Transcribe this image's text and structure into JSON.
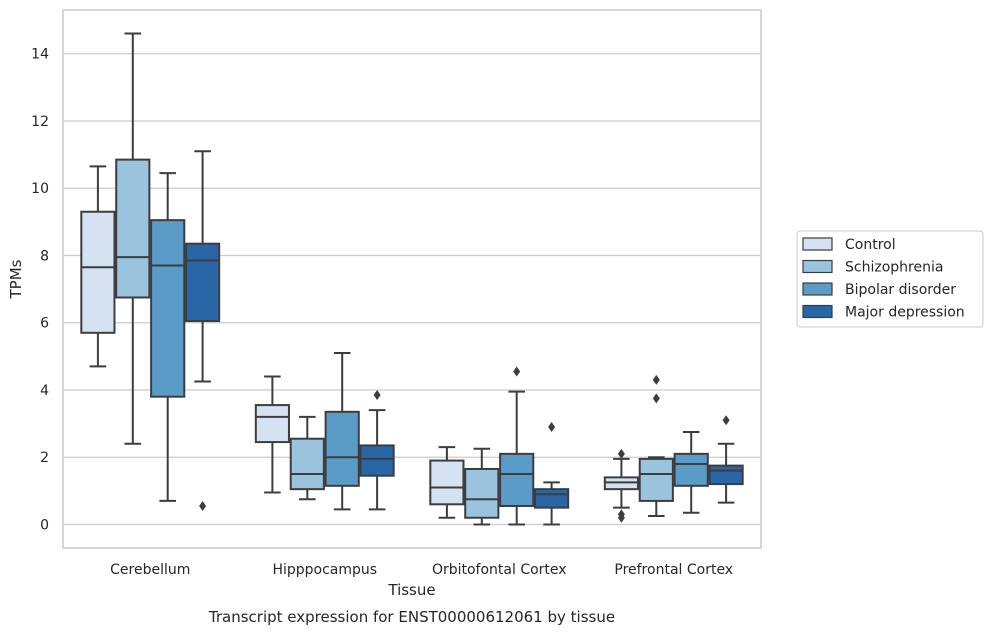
{
  "chart_data": {
    "type": "boxplot",
    "caption": "Transcript expression for ENST00000612061 by tissue",
    "xlabel": "Tissue",
    "ylabel": "TPMs",
    "ylim": [
      -0.7,
      15.3
    ],
    "yticks": [
      0,
      2,
      4,
      6,
      8,
      10,
      12,
      14
    ],
    "grid": "horizontal",
    "legend_position": "right",
    "categories": [
      "Cerebellum",
      "Hipppocampus",
      "Orbitofontal Cortex",
      "Prefrontal Cortex"
    ],
    "series": [
      {
        "name": "Control",
        "color": "#d4e2f1",
        "boxes": [
          {
            "whislo": 4.7,
            "q1": 5.7,
            "med": 7.65,
            "q3": 9.3,
            "whishi": 10.65,
            "fliers": []
          },
          {
            "whislo": 0.95,
            "q1": 2.45,
            "med": 3.2,
            "q3": 3.55,
            "whishi": 4.4,
            "fliers": []
          },
          {
            "whislo": 0.2,
            "q1": 0.6,
            "med": 1.1,
            "q3": 1.9,
            "whishi": 2.3,
            "fliers": []
          },
          {
            "whislo": 0.5,
            "q1": 1.05,
            "med": 1.25,
            "q3": 1.4,
            "whishi": 1.95,
            "fliers": [
              2.1,
              0.3,
              0.2
            ]
          }
        ]
      },
      {
        "name": "Schizophrenia",
        "color": "#9ac3de",
        "boxes": [
          {
            "whislo": 2.4,
            "q1": 6.75,
            "med": 7.95,
            "q3": 10.85,
            "whishi": 14.6,
            "fliers": []
          },
          {
            "whislo": 0.75,
            "q1": 1.05,
            "med": 1.5,
            "q3": 2.55,
            "whishi": 3.2,
            "fliers": []
          },
          {
            "whislo": 0.0,
            "q1": 0.2,
            "med": 0.75,
            "q3": 1.65,
            "whishi": 2.25,
            "fliers": []
          },
          {
            "whislo": 0.25,
            "q1": 0.7,
            "med": 1.5,
            "q3": 1.95,
            "whishi": 2.0,
            "fliers": [
              4.3,
              3.75
            ]
          }
        ]
      },
      {
        "name": "Bipolar disorder",
        "color": "#5a9bc8",
        "boxes": [
          {
            "whislo": 0.7,
            "q1": 3.8,
            "med": 7.7,
            "q3": 9.05,
            "whishi": 10.45,
            "fliers": []
          },
          {
            "whislo": 0.45,
            "q1": 1.15,
            "med": 2.0,
            "q3": 3.35,
            "whishi": 5.1,
            "fliers": []
          },
          {
            "whislo": 0.0,
            "q1": 0.55,
            "med": 1.5,
            "q3": 2.1,
            "whishi": 3.95,
            "fliers": [
              4.55
            ]
          },
          {
            "whislo": 0.35,
            "q1": 1.15,
            "med": 1.8,
            "q3": 2.1,
            "whishi": 2.75,
            "fliers": []
          }
        ]
      },
      {
        "name": "Major depression",
        "color": "#2866a7",
        "boxes": [
          {
            "whislo": 4.25,
            "q1": 6.05,
            "med": 7.85,
            "q3": 8.35,
            "whishi": 11.1,
            "fliers": [
              0.55
            ]
          },
          {
            "whislo": 0.45,
            "q1": 1.45,
            "med": 1.95,
            "q3": 2.35,
            "whishi": 3.4,
            "fliers": [
              3.85
            ]
          },
          {
            "whislo": 0.0,
            "q1": 0.5,
            "med": 0.9,
            "q3": 1.05,
            "whishi": 1.25,
            "fliers": [
              2.9
            ]
          },
          {
            "whislo": 0.65,
            "q1": 1.2,
            "med": 1.6,
            "q3": 1.75,
            "whishi": 2.4,
            "fliers": [
              3.1
            ]
          }
        ]
      }
    ]
  }
}
